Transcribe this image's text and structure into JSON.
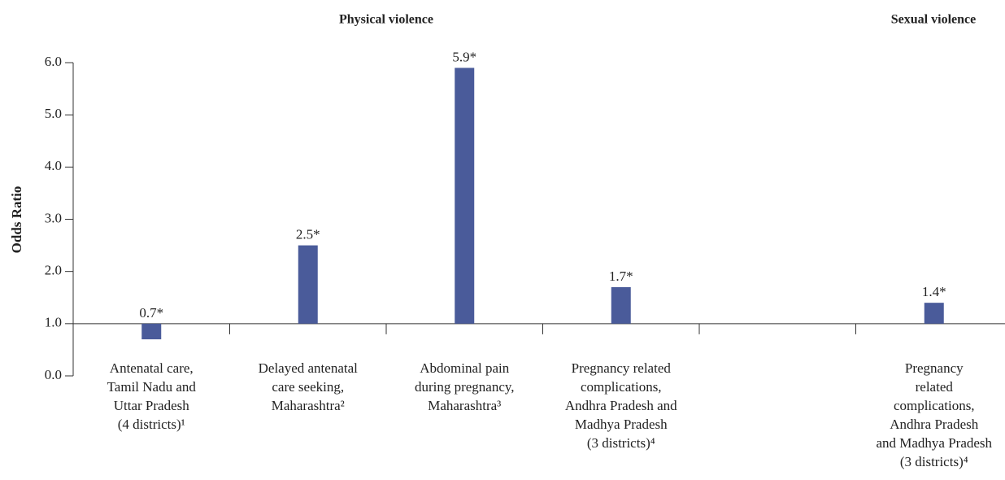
{
  "chart_data": {
    "type": "bar",
    "y_label": "Odds Ratio",
    "group_labels": [
      "Physical violence",
      "Sexual violence"
    ],
    "categories": [
      "Antenatal care,\nTamil Nadu and\nUttar Pradesh\n(4 districts)¹",
      "Delayed antenatal\ncare seeking,\nMaharashtra²",
      "Abdominal pain\nduring pregnancy,\nMaharashtra³",
      "Pregnancy related\ncomplications,\nAndhra Pradesh and\nMadhya Pradesh\n(3 districts)⁴",
      null,
      "Pregnancy\nrelated\ncomplications,\nAndhra Pradesh\nand Madhya Pradesh\n(3 districts)⁴"
    ],
    "values": [
      0.7,
      2.5,
      5.9,
      1.7,
      null,
      1.4
    ],
    "value_labels": [
      "0.7*",
      "2.5*",
      "5.9*",
      "1.7*",
      null,
      "1.4*"
    ],
    "color": "#4a5b9a",
    "baseline": 1.0,
    "ylim": [
      0,
      6
    ],
    "yticks": [
      {
        "value": 0,
        "label": "0.0"
      },
      {
        "value": 1,
        "label": "1.0"
      },
      {
        "value": 2,
        "label": "2.0"
      },
      {
        "value": 3,
        "label": "3.0"
      },
      {
        "value": 4,
        "label": "4.0"
      },
      {
        "value": 5,
        "label": "5.0"
      },
      {
        "value": 6,
        "label": "6.0"
      }
    ]
  }
}
